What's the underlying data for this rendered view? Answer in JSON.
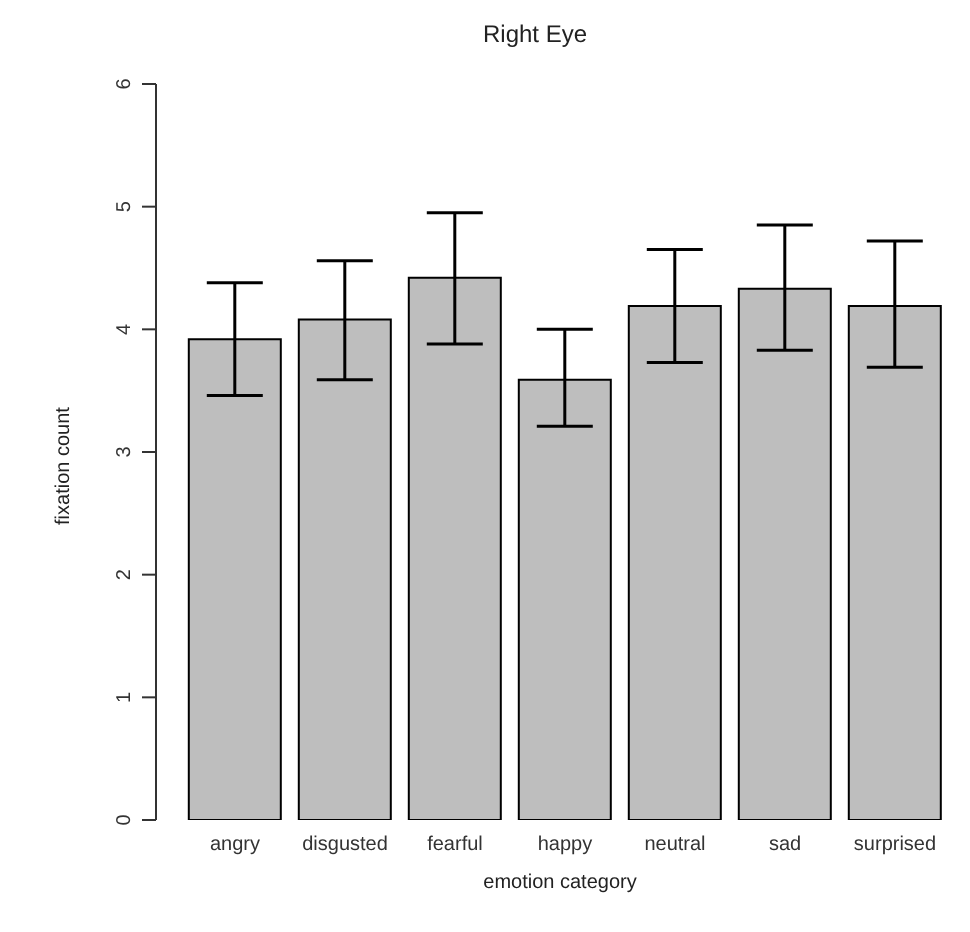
{
  "chart_data": {
    "type": "bar",
    "title": "Right Eye",
    "xlabel": "emotion category",
    "ylabel": "fixation count",
    "categories": [
      "angry",
      "disgusted",
      "fearful",
      "happy",
      "neutral",
      "sad",
      "surprised"
    ],
    "values": [
      3.92,
      4.08,
      4.42,
      3.59,
      4.19,
      4.33,
      4.19
    ],
    "errors": [
      [
        3.46,
        4.38
      ],
      [
        3.59,
        4.56
      ],
      [
        3.88,
        4.95
      ],
      [
        3.21,
        4.0
      ],
      [
        3.73,
        4.65
      ],
      [
        3.83,
        4.85
      ],
      [
        3.69,
        4.72
      ]
    ],
    "color": "#bebebe",
    "ylim": [
      0,
      6
    ],
    "yticks": [
      0,
      1,
      2,
      3,
      4,
      5,
      6
    ],
    "grid": false,
    "legend": false
  }
}
